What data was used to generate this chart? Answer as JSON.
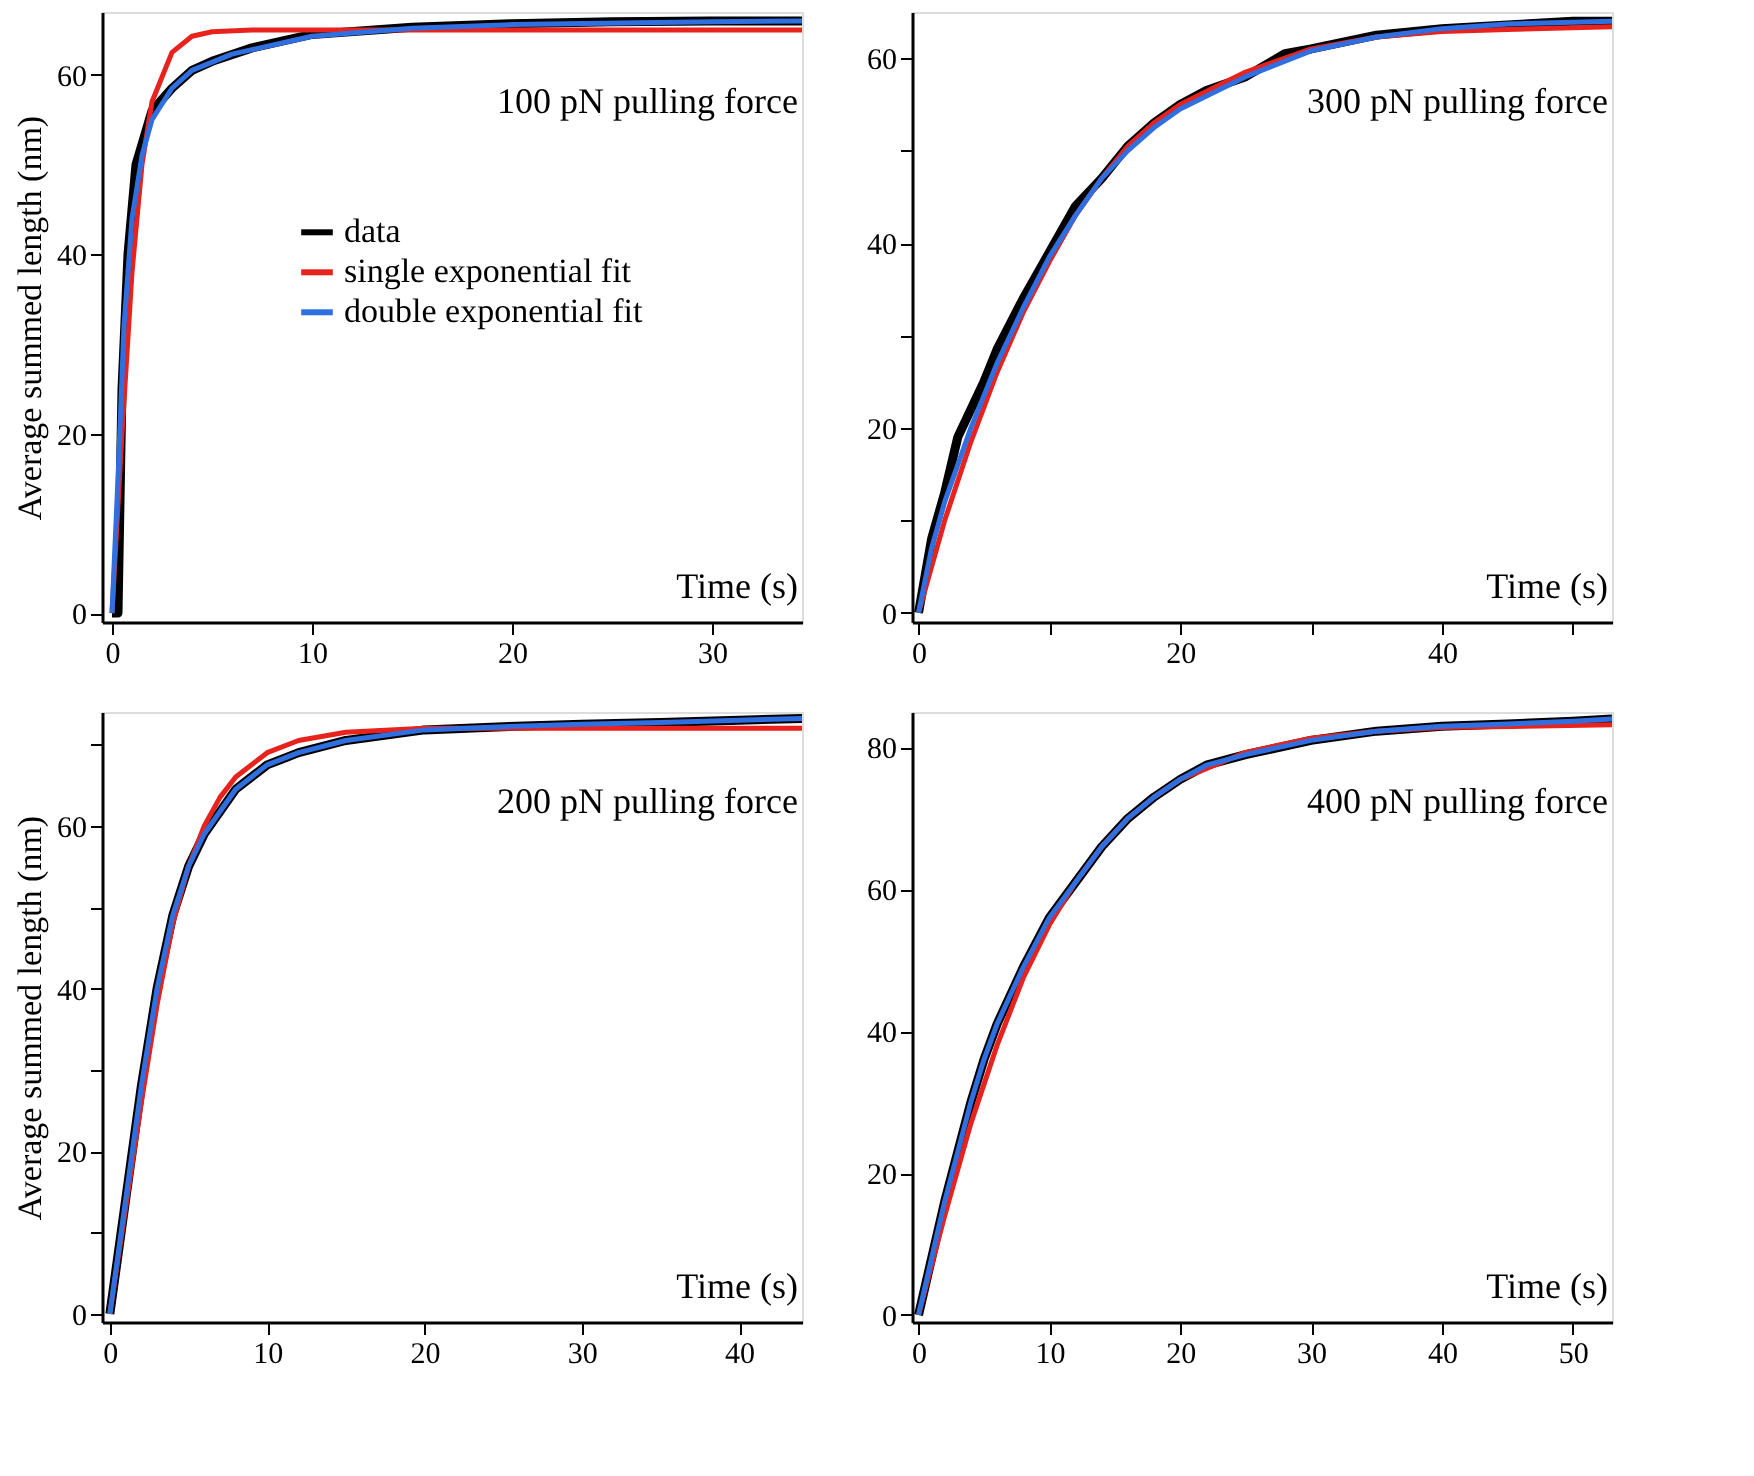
{
  "chart_data": [
    {
      "type": "line",
      "ylabel": "Average summed length (nm)",
      "xlabel": "Time (s)",
      "annotations": [
        "100 pN pulling force"
      ],
      "legend": "left",
      "xlim": [
        -0.5,
        34.5
      ],
      "ylim": [
        -1,
        67
      ],
      "xticks": [
        0,
        10,
        20,
        30
      ],
      "yticks": [
        0,
        20,
        40,
        60
      ],
      "grid": false,
      "line_style": "solid",
      "series": [
        {
          "name": "data",
          "color": "#000000",
          "x": [
            0,
            0.3,
            0.5,
            0.8,
            1.2,
            2,
            3,
            4,
            5,
            7,
            10,
            15,
            20,
            25,
            30,
            34.5
          ],
          "values": [
            0,
            0,
            25,
            40,
            50,
            56,
            58.5,
            60.5,
            61.5,
            63,
            64.5,
            65.3,
            65.7,
            65.9,
            66,
            66
          ]
        },
        {
          "name": "single exponential fit",
          "color": "#e8231e",
          "x": [
            0,
            0.5,
            1,
            1.5,
            2,
            3,
            4,
            5,
            7,
            34.5
          ],
          "values": [
            0,
            20,
            38,
            50,
            57,
            62.5,
            64.3,
            64.8,
            65,
            65
          ]
        },
        {
          "name": "double exponential fit",
          "color": "#2f6fe0",
          "x": [
            0,
            0.3,
            0.6,
            1,
            1.5,
            2,
            3,
            4,
            6,
            10,
            15,
            20,
            30,
            34.5
          ],
          "values": [
            0,
            15,
            32,
            44,
            51,
            55,
            58.5,
            60.5,
            62.3,
            64.3,
            65.2,
            65.6,
            65.9,
            66
          ]
        }
      ]
    },
    {
      "type": "line",
      "xlabel": "Time (s)",
      "annotations": [
        "300 pN pulling force"
      ],
      "xlim": [
        -0.5,
        53
      ],
      "ylim": [
        -1,
        65
      ],
      "xticks": [
        0,
        {
          "value": 10,
          "label": null
        },
        20,
        {
          "value": 30,
          "label": null
        },
        40,
        {
          "value": 50,
          "label": null
        }
      ],
      "yticks": [
        0,
        {
          "value": 10,
          "label": null
        },
        20,
        {
          "value": 30,
          "label": null
        },
        40,
        {
          "value": 50,
          "label": null
        },
        60
      ],
      "grid": false,
      "line_style": "solid",
      "series": [
        {
          "color": "#000000",
          "x": [
            0,
            1,
            2,
            3,
            4,
            5,
            6,
            8,
            10,
            12,
            14,
            16,
            18,
            20,
            22,
            25,
            28,
            30,
            35,
            40,
            45,
            50,
            53
          ],
          "values": [
            0,
            8,
            13,
            19,
            22,
            25,
            28.5,
            34,
            39,
            44,
            47,
            50.5,
            53,
            55,
            56.5,
            58,
            60.5,
            61,
            62.5,
            63.2,
            63.6,
            64,
            64
          ]
        },
        {
          "color": "#e8231e",
          "x": [
            0,
            2,
            4,
            6,
            8,
            10,
            12,
            14,
            16,
            18,
            20,
            25,
            30,
            35,
            40,
            45,
            53
          ],
          "values": [
            0,
            10,
            18.5,
            26,
            32.5,
            38,
            43,
            47,
            50.5,
            53,
            55,
            58.5,
            61,
            62.3,
            62.9,
            63.1,
            63.4
          ]
        },
        {
          "color": "#2f6fe0",
          "x": [
            0,
            1,
            2,
            4,
            6,
            8,
            10,
            12,
            14,
            16,
            18,
            20,
            25,
            30,
            35,
            40,
            45,
            53
          ],
          "values": [
            0,
            7,
            12,
            20,
            27,
            33,
            38.5,
            43,
            47,
            50,
            52.5,
            54.5,
            58,
            60.8,
            62.3,
            63.2,
            63.7,
            64
          ]
        }
      ]
    },
    {
      "type": "line",
      "ylabel": "Average summed length (nm)",
      "xlabel": "Time (s)",
      "annotations": [
        "200 pN pulling force"
      ],
      "xlim": [
        -0.5,
        44
      ],
      "ylim": [
        -1,
        74
      ],
      "xticks": [
        0,
        10,
        20,
        30,
        40
      ],
      "yticks": [
        0,
        {
          "value": 10,
          "label": null
        },
        20,
        {
          "value": 30,
          "label": null
        },
        40,
        {
          "value": 50,
          "label": null
        },
        60,
        {
          "value": 70,
          "label": null
        }
      ],
      "grid": false,
      "line_style": "solid",
      "series": [
        {
          "color": "#000000",
          "x": [
            0,
            1,
            2,
            3,
            4,
            5,
            6,
            8,
            10,
            12,
            15,
            20,
            25,
            30,
            35,
            40,
            44
          ],
          "values": [
            0,
            14,
            28,
            40,
            49,
            55,
            59,
            64.5,
            67.5,
            69,
            70.5,
            71.8,
            72.2,
            72.5,
            72.7,
            73,
            73.2
          ]
        },
        {
          "color": "#e8231e",
          "x": [
            0,
            1,
            2,
            3,
            4,
            5,
            6,
            7,
            8,
            10,
            12,
            15,
            20,
            44
          ],
          "values": [
            0,
            13,
            26,
            38,
            48,
            55,
            60,
            63.5,
            66,
            69,
            70.5,
            71.5,
            72,
            72
          ]
        },
        {
          "color": "#2f6fe0",
          "x": [
            0,
            1,
            2,
            3,
            4,
            5,
            6,
            8,
            10,
            12,
            15,
            20,
            25,
            30,
            35,
            40,
            44
          ],
          "values": [
            0,
            14,
            28,
            40,
            49,
            55,
            59,
            64.5,
            67.5,
            69,
            70.5,
            71.8,
            72.2,
            72.5,
            72.7,
            73,
            73.2
          ]
        }
      ]
    },
    {
      "type": "line",
      "xlabel": "Time (s)",
      "annotations": [
        "400 pN pulling force"
      ],
      "xlim": [
        -0.5,
        53
      ],
      "ylim": [
        -1,
        85
      ],
      "xticks": [
        0,
        10,
        20,
        30,
        40,
        50
      ],
      "yticks": [
        0,
        20,
        40,
        60,
        80
      ],
      "grid": false,
      "line_style": "solid",
      "series": [
        {
          "color": "#000000",
          "x": [
            0,
            1,
            2,
            3,
            4,
            5,
            6,
            8,
            10,
            12,
            14,
            16,
            18,
            20,
            22,
            25,
            30,
            35,
            40,
            45,
            50,
            53
          ],
          "values": [
            0,
            8,
            16,
            23,
            30,
            36,
            41,
            49,
            56,
            61,
            66,
            70,
            73,
            75.5,
            77.5,
            79,
            81,
            82.3,
            83,
            83.3,
            83.7,
            84
          ]
        },
        {
          "color": "#e8231e",
          "x": [
            0,
            2,
            4,
            6,
            8,
            10,
            12,
            14,
            16,
            18,
            20,
            25,
            30,
            35,
            40,
            53
          ],
          "values": [
            0,
            14,
            27,
            38,
            47.5,
            55,
            61,
            66,
            70,
            73,
            75.5,
            79.3,
            81.3,
            82.3,
            82.8,
            83.2
          ]
        },
        {
          "color": "#2f6fe0",
          "x": [
            0,
            1,
            2,
            3,
            4,
            5,
            6,
            8,
            10,
            12,
            14,
            16,
            18,
            20,
            22,
            25,
            30,
            35,
            40,
            45,
            50,
            53
          ],
          "values": [
            0,
            8,
            16,
            23,
            30,
            36,
            41,
            49,
            56,
            61,
            66,
            70,
            73,
            75.5,
            77.5,
            79,
            81,
            82.3,
            83,
            83.3,
            83.7,
            84
          ]
        }
      ]
    }
  ]
}
